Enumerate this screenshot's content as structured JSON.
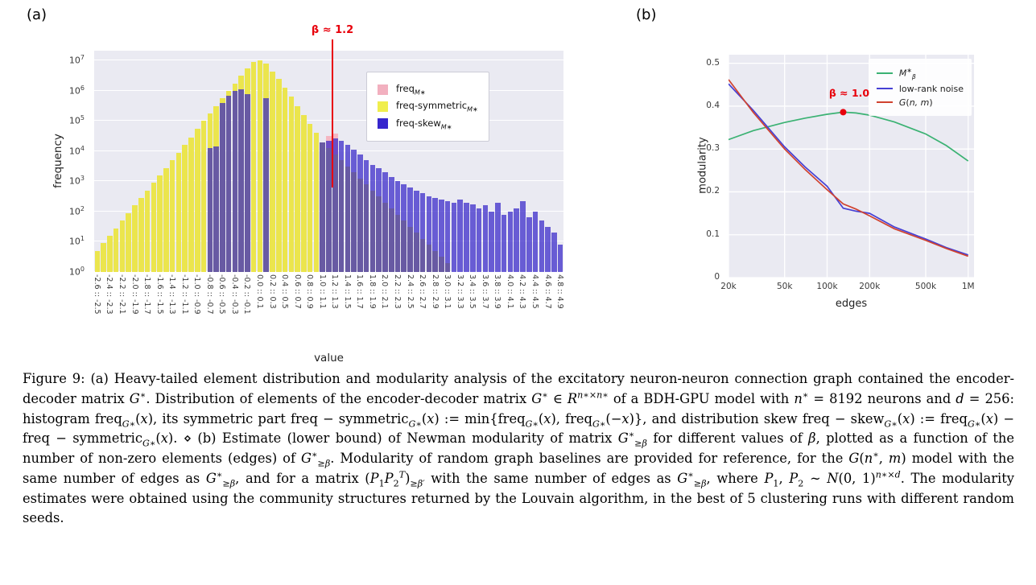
{
  "figure": {
    "panel_a_label": "(a)",
    "panel_b_label": "(b)"
  },
  "chart_data": [
    {
      "type": "bar",
      "title": "",
      "xlabel": "value",
      "ylabel": "frequency",
      "yscale": "log",
      "y_tick_base": "10",
      "y_tick_exponents": [
        0,
        1,
        2,
        3,
        4,
        5,
        6,
        7
      ],
      "ylim_log10": [
        0,
        7.33
      ],
      "x_bin_start": -2.6,
      "x_bin_width": 0.1,
      "x_tick_labels": [
        "-2.6 :: -2.5",
        "-2.4 :: -2.3",
        "-2.2 :: -2.1",
        "-2.0 :: -1.9",
        "-1.8 :: -1.7",
        "-1.6 :: -1.5",
        "-1.4 :: -1.3",
        "-1.2 :: -1.1",
        "-1.0 :: -0.9",
        "-0.8 :: -0.7",
        "-0.6 :: -0.5",
        "-0.4 :: -0.3",
        "-0.2 :: -0.1",
        "0.0 :: 0.1",
        "0.2 :: 0.3",
        "0.4 :: 0.5",
        "0.6 :: 0.7",
        "0.8 :: 0.9",
        "1.0 :: 1.1",
        "1.2 :: 1.3",
        "1.4 :: 1.5",
        "1.6 :: 1.7",
        "1.8 :: 1.9",
        "2.0 :: 2.1",
        "2.2 :: 2.3",
        "2.4 :: 2.5",
        "2.6 :: 2.7",
        "2.8 :: 2.9",
        "3.0 :: 3.1",
        "3.2 :: 3.3",
        "3.4 :: 3.5",
        "3.6 :: 3.7",
        "3.8 :: 3.9",
        "4.0 :: 4.1",
        "4.2 :: 4.3",
        "4.4 :: 4.5",
        "4.6 :: 4.7",
        "4.8 :: 4.9"
      ],
      "series": [
        {
          "name": "freq_M*",
          "label_parts": [
            [
              "freq",
              ""
            ],
            [
              "M∗",
              "subi"
            ]
          ],
          "color": "#f4b6c2",
          "swatch": "#f2b0bf",
          "log10_values": [
            0,
            0,
            0,
            0,
            0,
            0,
            0,
            0,
            0,
            0,
            0,
            0,
            0,
            0,
            0,
            0,
            0,
            0,
            0,
            0,
            0,
            0,
            0,
            0,
            0,
            0,
            0,
            0,
            0,
            0,
            0,
            0,
            0,
            0,
            0,
            0,
            0,
            4.5,
            4.58,
            0,
            0,
            0,
            0,
            0,
            0,
            0,
            0,
            0,
            0,
            0,
            0,
            0,
            0,
            0,
            0,
            0,
            0,
            0,
            0,
            0,
            0,
            0,
            0,
            0,
            0,
            0,
            0,
            0,
            0,
            0,
            0,
            0,
            0,
            0,
            0
          ]
        },
        {
          "name": "freq-symmetric_M*",
          "label_parts": [
            [
              "freq-symmetric",
              ""
            ],
            [
              "M∗",
              "subi"
            ]
          ],
          "color": "#ebe54d",
          "swatch": "#f0ee4d",
          "log10_values": [
            0.7,
            0.95,
            1.2,
            1.45,
            1.7,
            1.95,
            2.2,
            2.45,
            2.7,
            2.95,
            3.2,
            3.45,
            3.7,
            3.95,
            4.2,
            4.45,
            4.75,
            5.0,
            5.25,
            5.5,
            5.75,
            6.0,
            6.25,
            6.5,
            6.75,
            6.95,
            7.0,
            6.9,
            6.65,
            6.4,
            6.1,
            5.8,
            5.5,
            5.2,
            4.9,
            4.6,
            4.3,
            4.1,
            3.9,
            3.7,
            3.5,
            3.3,
            3.1,
            2.9,
            2.7,
            2.5,
            2.3,
            2.1,
            1.9,
            1.7,
            1.5,
            1.3,
            1.1,
            0.9,
            0.7,
            0.5,
            0.3,
            0,
            0,
            0,
            0,
            0,
            0,
            0,
            0,
            0,
            0,
            0,
            0,
            0,
            0,
            0,
            0,
            0,
            0
          ]
        },
        {
          "name": "freq-skew_M*",
          "label_parts": [
            [
              "freq-skew",
              ""
            ],
            [
              "M∗",
              "subi"
            ]
          ],
          "color": "rgba(48,32,200,0.70)",
          "swatch": "#3626cd",
          "log10_values": [
            0,
            0,
            0,
            0,
            0,
            0,
            0,
            0,
            0,
            0,
            0,
            0,
            0,
            0,
            0,
            0,
            0,
            0,
            4.1,
            4.15,
            5.6,
            5.85,
            6.0,
            6.05,
            5.9,
            0,
            0,
            5.75,
            0,
            0,
            0,
            0,
            0,
            0,
            0,
            0,
            4.3,
            4.35,
            4.42,
            4.35,
            4.2,
            4.05,
            3.9,
            3.7,
            3.55,
            3.45,
            3.3,
            3.15,
            3.0,
            2.9,
            2.8,
            2.7,
            2.6,
            2.5,
            2.45,
            2.4,
            2.35,
            2.3,
            2.4,
            2.3,
            2.25,
            2.1,
            2.2,
            2.0,
            2.3,
            1.9,
            2.0,
            2.1,
            2.35,
            1.8,
            2.0,
            1.7,
            1.5,
            1.3,
            0.9
          ]
        }
      ],
      "annotation": {
        "text": "β ≈ 1.2",
        "x": 1.2,
        "line_bottom_log10": 2.8,
        "color": "#e8000b"
      }
    },
    {
      "type": "line",
      "title": "",
      "xlabel": "edges",
      "ylabel": "modularity",
      "xscale": "log",
      "xlim": [
        20000,
        1100000
      ],
      "ylim": [
        0,
        0.52
      ],
      "x_ticks": [
        {
          "v": 20000,
          "label": "20k"
        },
        {
          "v": 50000,
          "label": "50k"
        },
        {
          "v": 100000,
          "label": "100k"
        },
        {
          "v": 200000,
          "label": "200k"
        },
        {
          "v": 500000,
          "label": "500k"
        },
        {
          "v": 1000000,
          "label": "1M"
        }
      ],
      "y_ticks": [
        {
          "v": 0,
          "label": "0"
        },
        {
          "v": 0.1,
          "label": "0.1"
        },
        {
          "v": 0.2,
          "label": "0.2"
        },
        {
          "v": 0.3,
          "label": "0.3"
        },
        {
          "v": 0.4,
          "label": "0.4"
        },
        {
          "v": 0.5,
          "label": "0.5"
        }
      ],
      "series": [
        {
          "name": "M*_β",
          "label_parts": [
            [
              "M",
              "i"
            ],
            [
              "∗",
              "sup"
            ],
            [
              "β",
              "subi"
            ]
          ],
          "color": "#3bb273",
          "x": [
            20000,
            30000,
            50000,
            70000,
            100000,
            130000,
            160000,
            200000,
            300000,
            500000,
            700000,
            1000000
          ],
          "y": [
            0.322,
            0.343,
            0.362,
            0.372,
            0.381,
            0.386,
            0.384,
            0.379,
            0.363,
            0.335,
            0.308,
            0.272
          ]
        },
        {
          "name": "low-rank noise",
          "label_parts": [
            [
              "low-rank noise",
              ""
            ]
          ],
          "color": "#4640d4",
          "x": [
            20000,
            30000,
            50000,
            70000,
            100000,
            130000,
            160000,
            200000,
            300000,
            500000,
            700000,
            1000000
          ],
          "y": [
            0.452,
            0.39,
            0.305,
            0.258,
            0.213,
            0.162,
            0.155,
            0.15,
            0.118,
            0.09,
            0.07,
            0.053
          ]
        },
        {
          "name": "G(n, m)",
          "label_parts": [
            [
              "G",
              "i"
            ],
            [
              "(",
              ""
            ],
            [
              "n, m",
              "i"
            ],
            [
              ")",
              ""
            ]
          ],
          "color": "#d0422f",
          "x": [
            20000,
            30000,
            50000,
            70000,
            100000,
            130000,
            160000,
            200000,
            300000,
            500000,
            700000,
            1000000
          ],
          "y": [
            0.462,
            0.385,
            0.3,
            0.252,
            0.205,
            0.172,
            0.16,
            0.144,
            0.114,
            0.087,
            0.068,
            0.05
          ]
        }
      ],
      "annotation": {
        "text": "β ≈ 1.0",
        "x": 130000,
        "y": 0.386,
        "color": "#e8000b"
      }
    }
  ],
  "caption": {
    "segments": [
      [
        "Figure 9: (a) Heavy-tailed element distribution and modularity analysis of the excitatory neuron-neuron connection graph contained the encoder-decoder matrix ",
        ""
      ],
      [
        "G",
        "i"
      ],
      [
        "∗",
        "sup"
      ],
      [
        ". Distribution of elements of the encoder-decoder matrix ",
        ""
      ],
      [
        "G",
        "i"
      ],
      [
        "∗",
        "sup"
      ],
      [
        " ∈ ",
        ""
      ],
      [
        "R",
        "i"
      ],
      [
        "n∗×n∗",
        "supi"
      ],
      [
        " of a BDH-GPU model with ",
        ""
      ],
      [
        "n",
        "i"
      ],
      [
        "∗",
        "sup"
      ],
      [
        " = 8192 neurons and ",
        ""
      ],
      [
        "d",
        "i"
      ],
      [
        " = 256: histogram freq",
        ""
      ],
      [
        "G∗",
        "subi"
      ],
      [
        "(",
        ""
      ],
      [
        "x",
        "i"
      ],
      [
        "), its symmetric part freq − symmetric",
        ""
      ],
      [
        "G∗",
        "subi"
      ],
      [
        "(",
        ""
      ],
      [
        "x",
        "i"
      ],
      [
        ") := min{freq",
        ""
      ],
      [
        "G∗",
        "subi"
      ],
      [
        "(",
        ""
      ],
      [
        "x",
        "i"
      ],
      [
        "), freq",
        ""
      ],
      [
        "G∗",
        "subi"
      ],
      [
        "(−",
        ""
      ],
      [
        "x",
        "i"
      ],
      [
        ")}, and distribution skew freq − skew",
        ""
      ],
      [
        "G∗",
        "subi"
      ],
      [
        "(",
        ""
      ],
      [
        "x",
        "i"
      ],
      [
        ") := freq",
        ""
      ],
      [
        "G∗",
        "subi"
      ],
      [
        "(",
        ""
      ],
      [
        "x",
        "i"
      ],
      [
        ") − freq − symmetric",
        ""
      ],
      [
        "G∗",
        "subi"
      ],
      [
        "(",
        ""
      ],
      [
        "x",
        "i"
      ],
      [
        "). ⋄ (b) Estimate (lower bound) of Newman modularity of matrix ",
        ""
      ],
      [
        "G",
        "i"
      ],
      [
        "∗",
        "sup"
      ],
      [
        "≥β",
        "subi"
      ],
      [
        " for different values of ",
        ""
      ],
      [
        "β",
        "i"
      ],
      [
        ", plotted as a function of the number of non-zero elements (edges) of ",
        ""
      ],
      [
        "G",
        "i"
      ],
      [
        "∗",
        "sup"
      ],
      [
        "≥β",
        "subi"
      ],
      [
        ". Modularity of random graph baselines are provided for reference, for the ",
        ""
      ],
      [
        "G",
        "i"
      ],
      [
        "(",
        ""
      ],
      [
        "n",
        "i"
      ],
      [
        "∗",
        "sup"
      ],
      [
        ", ",
        ""
      ],
      [
        "m",
        "i"
      ],
      [
        ") model with the same number of edges as ",
        ""
      ],
      [
        "G",
        "i"
      ],
      [
        "∗",
        "sup"
      ],
      [
        "≥β",
        "subi"
      ],
      [
        ", and for a matrix (",
        ""
      ],
      [
        "P",
        "i"
      ],
      [
        "1",
        "sub"
      ],
      [
        "P",
        "i"
      ],
      [
        "2",
        "sub"
      ],
      [
        "T",
        "supi"
      ],
      [
        ")",
        ""
      ],
      [
        "≥β′",
        "subi"
      ],
      [
        " with the same number of edges as ",
        ""
      ],
      [
        "G",
        "i"
      ],
      [
        "∗",
        "sup"
      ],
      [
        "≥β",
        "subi"
      ],
      [
        ", where ",
        ""
      ],
      [
        "P",
        "i"
      ],
      [
        "1",
        "sub"
      ],
      [
        ", ",
        ""
      ],
      [
        "P",
        "i"
      ],
      [
        "2",
        "sub"
      ],
      [
        " ∼ ",
        ""
      ],
      [
        "N",
        "i"
      ],
      [
        "(0, 1)",
        ""
      ],
      [
        "n∗×d",
        "supi"
      ],
      [
        ". The modularity estimates were obtained using the community structures returned by the Louvain algorithm, in the best of 5 clustering runs with different random seeds.",
        ""
      ]
    ]
  }
}
